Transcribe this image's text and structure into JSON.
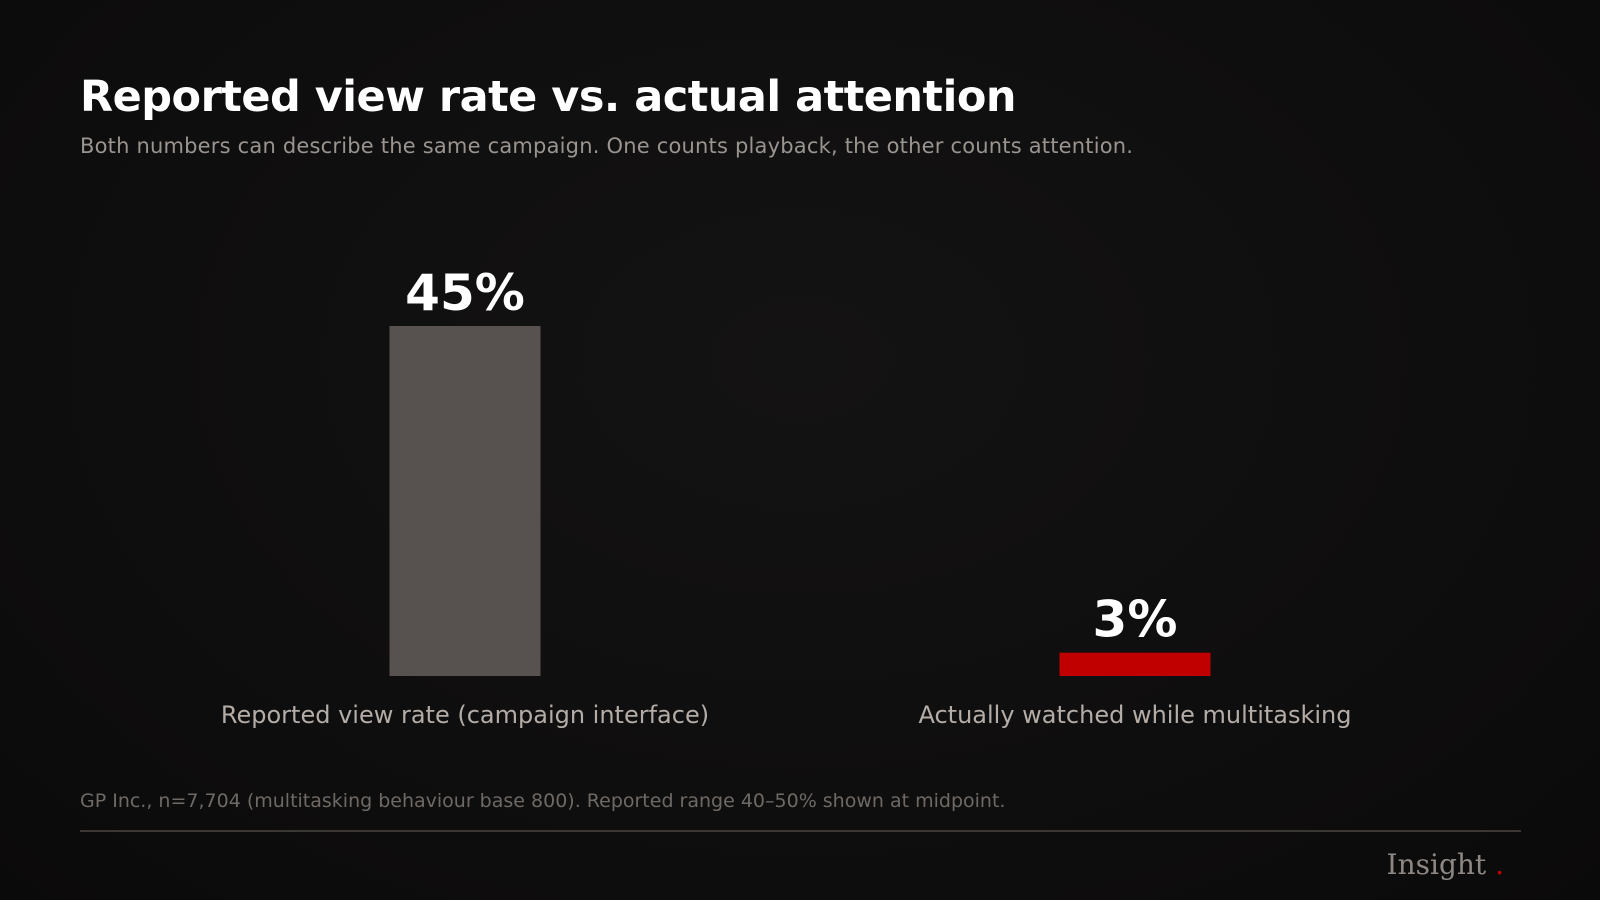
{
  "title": "Reported view rate vs. actual attention",
  "subtitle": "Both numbers can describe the same campaign. One counts playback, the other counts attention.",
  "chart_data": {
    "type": "bar",
    "categories": [
      "Reported view rate (campaign interface)",
      "Actually watched while multitasking"
    ],
    "values": [
      45,
      3
    ],
    "data_labels": [
      "45%",
      "3%"
    ],
    "colors": [
      "#57524f",
      "#c00000"
    ],
    "ylim": [
      0,
      45
    ],
    "grid": false,
    "legend": "none"
  },
  "footnote": "GP Inc., n=7,704 (multitasking behaviour base 800). Reported range 40–50% shown at midpoint.",
  "brand": {
    "name": "Insight",
    "dot": ".",
    "dot_color": "#c40000"
  }
}
